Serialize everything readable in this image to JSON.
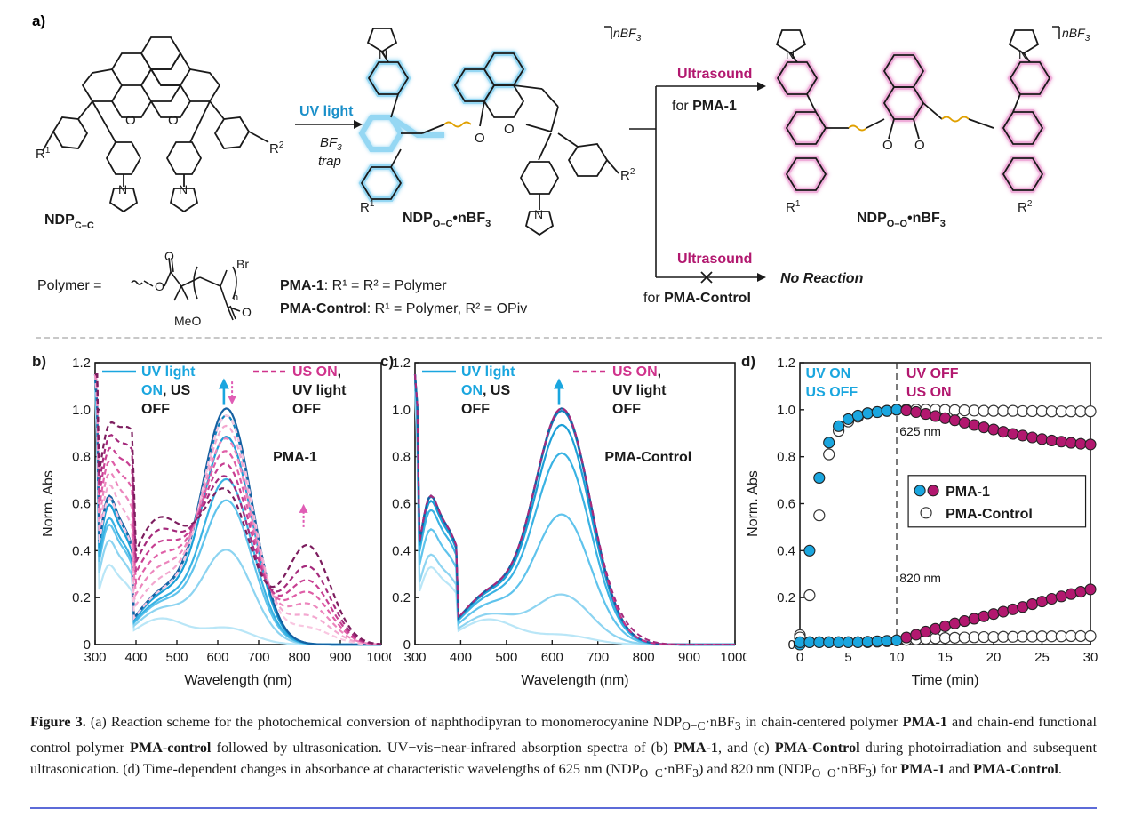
{
  "panel_a": {
    "label": "a)",
    "reactant_label_main": "NDP",
    "reactant_label_sub": "C–C",
    "r1": "R",
    "r1_sup": "1",
    "r2": "R",
    "r2_sup": "2",
    "uv_label": "UV light",
    "bf3_label": "BF",
    "bf3_sub": "3",
    "trap_label": "trap",
    "intermediate_main": "NDP",
    "intermediate_sub": "O–C",
    "intermediate_suffix": "•nBF",
    "intermediate_suffix_sub": "3",
    "nbf3_top": "nBF",
    "nbf3_top_sub": "3",
    "ultrasound_1": "Ultrasound",
    "for_pma1_pre": "for ",
    "for_pma1_bold": "PMA-1",
    "ultrasound_2": "Ultrasound",
    "for_control_pre": "for ",
    "for_control_bold": "PMA-Control",
    "no_reaction": "No Reaction",
    "product_main": "NDP",
    "product_sub": "O–O",
    "product_suffix": "•nBF",
    "product_suffix_sub": "3",
    "polymer_eq": "Polymer =",
    "meo": "MeO",
    "br": "Br",
    "n": "n",
    "pma1_def_bold": "PMA-1",
    "pma1_def_rest": ": R¹ = R² = Polymer",
    "control_def_bold": "PMA-Control",
    "control_def_rest": ": R¹ = Polymer, R² = OPiv"
  },
  "chart_data": [
    {
      "panel": "b)",
      "type": "line",
      "annotation": "PMA-1",
      "xlabel": "Wavelength (nm)",
      "ylabel": "Norm. Abs",
      "xlim": [
        300,
        1000
      ],
      "ylim": [
        0,
        1.2
      ],
      "xticks": [
        "300",
        "400",
        "500",
        "600",
        "700",
        "800",
        "900",
        "1000"
      ],
      "yticks": [
        "0",
        "0.2",
        "0.4",
        "0.6",
        "0.8",
        "1.0",
        "1.2"
      ],
      "legend": [
        {
          "style": "solid",
          "color": "#1aa6df",
          "lines": [
            [
              "UV light"
            ],
            [
              "ON",
              ", US"
            ],
            [
              "OFF"
            ]
          ]
        },
        {
          "style": "dashed",
          "color": "#d0338c",
          "lines": [
            [
              "US ON",
              ","
            ],
            [
              "UV light"
            ],
            [
              "OFF"
            ]
          ]
        }
      ],
      "uv_peak_heights": [
        0.07,
        0.4,
        0.61,
        0.7,
        0.88,
        0.97,
        1.0
      ],
      "us_peak_heights": [
        0.97,
        0.92,
        0.86,
        0.8,
        0.74,
        0.68,
        0.62
      ],
      "us_nir_heights": [
        0.07,
        0.12,
        0.17,
        0.22,
        0.27,
        0.33,
        0.42
      ],
      "uv_colors": [
        "#b9e6f7",
        "#8dd4f1",
        "#5fc3ec",
        "#39b2e3",
        "#1b9fd7",
        "#1284bf",
        "#1561a2"
      ],
      "us_colors": [
        "#f9c7e1",
        "#f3a8d0",
        "#ec86bd",
        "#df5ea7",
        "#c73f92",
        "#a52a7c",
        "#7d1e5f"
      ]
    },
    {
      "panel": "c)",
      "type": "line",
      "annotation": "PMA-Control",
      "xlabel": "Wavelength (nm)",
      "ylabel": "Norm. Abs",
      "xlim": [
        300,
        1000
      ],
      "ylim": [
        0,
        1.2
      ],
      "xticks": [
        "300",
        "400",
        "500",
        "600",
        "700",
        "800",
        "900",
        "1000"
      ],
      "yticks": [
        "0",
        "0.2",
        "0.4",
        "0.6",
        "0.8",
        "1.0",
        "1.2"
      ],
      "legend": [
        {
          "style": "solid",
          "color": "#1aa6df",
          "lines": [
            [
              "UV light"
            ],
            [
              "ON",
              ", US"
            ],
            [
              "OFF"
            ]
          ]
        },
        {
          "style": "dashed",
          "color": "#d0338c",
          "lines": [
            [
              "US ON",
              ","
            ],
            [
              "UV light"
            ],
            [
              "OFF"
            ]
          ]
        }
      ],
      "uv_peak_heights": [
        0.04,
        0.21,
        0.55,
        0.81,
        0.93,
        0.99,
        1.0
      ],
      "uv_colors": [
        "#b9e6f7",
        "#8dd4f1",
        "#5fc3ec",
        "#39b2e3",
        "#1b9fd7",
        "#1284bf",
        "#1561a2"
      ],
      "us_peak_heights": [
        1.0,
        1.0
      ],
      "us_colors": [
        "#d0338c",
        "#a52a7c"
      ]
    },
    {
      "panel": "d)",
      "type": "scatter",
      "xlabel": "Time (min)",
      "ylabel": "Norm. Abs",
      "xlim": [
        0,
        30
      ],
      "ylim": [
        0,
        1.2
      ],
      "xticks": [
        "0",
        "5",
        "10",
        "15",
        "20",
        "25",
        "30"
      ],
      "yticks": [
        "0",
        "0.2",
        "0.4",
        "0.6",
        "0.8",
        "1.0",
        "1.2"
      ],
      "region_left": [
        "UV ON",
        "US OFF"
      ],
      "region_right": [
        "UV OFF",
        "US ON"
      ],
      "annot_625": "625 nm",
      "annot_820": "820 nm",
      "legend": [
        "PMA-1",
        "PMA-Control"
      ],
      "colors": {
        "uv": "#1aa6df",
        "us": "#b2186f"
      },
      "pma1_625_x": [
        0,
        1,
        2,
        3,
        4,
        5,
        6,
        7,
        8,
        9,
        10,
        11,
        12,
        13,
        14,
        15,
        16,
        17,
        18,
        19,
        20,
        21,
        22,
        23,
        24,
        25,
        26,
        27,
        28,
        29,
        30
      ],
      "pma1_625_y": [
        0.0,
        0.4,
        0.71,
        0.86,
        0.93,
        0.96,
        0.975,
        0.985,
        0.99,
        0.995,
        1.0,
        0.997,
        0.99,
        0.982,
        0.973,
        0.964,
        0.955,
        0.945,
        0.935,
        0.925,
        0.916,
        0.906,
        0.897,
        0.89,
        0.882,
        0.875,
        0.869,
        0.864,
        0.859,
        0.855,
        0.852
      ],
      "pma1_820_y": [
        0.01,
        0.01,
        0.01,
        0.01,
        0.01,
        0.01,
        0.01,
        0.012,
        0.014,
        0.016,
        0.018,
        0.03,
        0.042,
        0.055,
        0.067,
        0.078,
        0.09,
        0.1,
        0.11,
        0.12,
        0.13,
        0.14,
        0.15,
        0.16,
        0.172,
        0.183,
        0.195,
        0.205,
        0.215,
        0.225,
        0.235
      ],
      "control_625_x": [
        0,
        1,
        2,
        3,
        4,
        5,
        6,
        7,
        8,
        9,
        10,
        11,
        12,
        13,
        14,
        15,
        16,
        17,
        18,
        19,
        20,
        21,
        22,
        23,
        24,
        25,
        26,
        27,
        28,
        29,
        30
      ],
      "control_625_y": [
        0.04,
        0.21,
        0.55,
        0.81,
        0.91,
        0.95,
        0.97,
        0.985,
        0.99,
        0.995,
        1.0,
        1.0,
        1.0,
        1.0,
        1.0,
        0.999,
        0.998,
        0.997,
        0.996,
        0.995,
        0.995,
        0.995,
        0.995,
        0.994,
        0.994,
        0.994,
        0.993,
        0.993,
        0.993,
        0.993,
        0.993
      ],
      "control_820_y": [
        0.03,
        0.01,
        0.01,
        0.01,
        0.01,
        0.01,
        0.01,
        0.01,
        0.012,
        0.014,
        0.018,
        0.02,
        0.022,
        0.025,
        0.027,
        0.028,
        0.029,
        0.03,
        0.031,
        0.032,
        0.032,
        0.033,
        0.033,
        0.034,
        0.034,
        0.035,
        0.035,
        0.035,
        0.036,
        0.036,
        0.036
      ]
    }
  ],
  "caption": {
    "fig": "Figure 3.",
    "t1": " (a) Reaction scheme for the photochemical conversion of naphthodipyran to monomerocyanine NDP",
    "t1_sub": "O−C",
    "t1b": "·nBF",
    "t1b_sub": "3",
    "t2": " in chain-centered polymer ",
    "pma1": "PMA-1",
    "t3": " and chain-end functional control polymer ",
    "pmacontrol": "PMA-control",
    "t4": " followed by ultrasonication. UV−vis−near-infrared absorption spectra of (b) ",
    "pma1b": "PMA-1",
    "t5": ", and (c) ",
    "pmacontrolb": "PMA-Control",
    "t6": " during photoirradiation and subsequent ultrasonication. (d) Time-dependent changes in absorbance at characteristic wavelengths of 625 nm (NDP",
    "t6_sub": "O−C",
    "t6b": "·nBF",
    "t6b_sub": "3",
    "t7": ") and 820 nm (NDP",
    "t7_sub": "O−O",
    "t7b": "·nBF",
    "t7b_sub": "3",
    "t8": ") for ",
    "pma1c": "PMA-1",
    "t9": " and ",
    "pmacontrolc": "PMA-Control",
    "t10": "."
  }
}
